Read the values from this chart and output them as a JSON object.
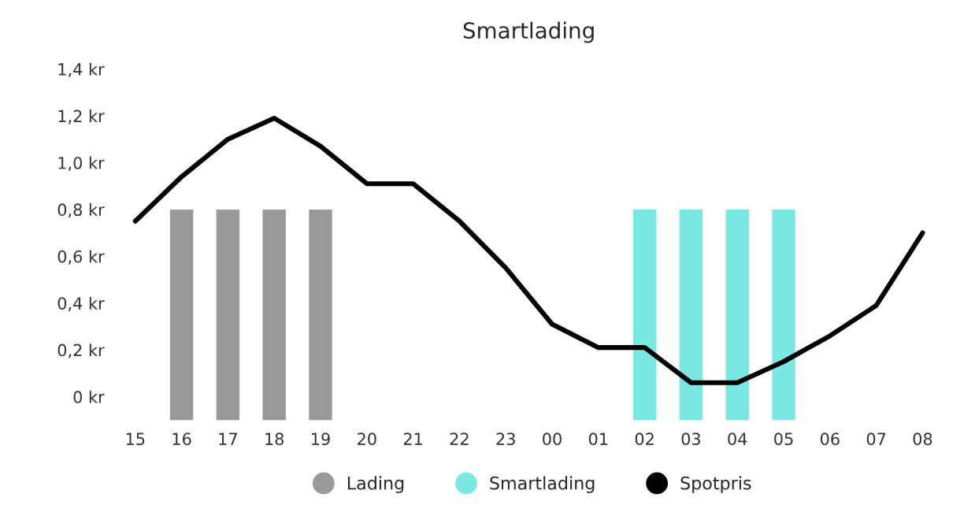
{
  "chart_data": {
    "type": "bar",
    "title": "Smartlading",
    "categories": [
      "15",
      "16",
      "17",
      "18",
      "19",
      "20",
      "21",
      "22",
      "23",
      "00",
      "01",
      "02",
      "03",
      "04",
      "05",
      "06",
      "07",
      "08"
    ],
    "series": [
      {
        "name": "Lading",
        "color": "#999999",
        "values": [
          null,
          0.9,
          0.9,
          0.9,
          0.9,
          null,
          null,
          null,
          null,
          null,
          null,
          null,
          null,
          null,
          null,
          null,
          null,
          null
        ],
        "base": [
          null,
          -0.1,
          -0.1,
          -0.1,
          -0.1,
          null,
          null,
          null,
          null,
          null,
          null,
          null,
          null,
          null,
          null,
          null,
          null,
          null
        ]
      },
      {
        "name": "Smartlading",
        "color": "#7ae8e0",
        "values": [
          null,
          null,
          null,
          null,
          null,
          null,
          null,
          null,
          null,
          null,
          null,
          0.9,
          0.9,
          0.9,
          0.9,
          null,
          null,
          null
        ],
        "base": [
          null,
          null,
          null,
          null,
          null,
          null,
          null,
          null,
          null,
          null,
          null,
          -0.1,
          -0.1,
          -0.1,
          -0.1,
          null,
          null,
          null
        ]
      },
      {
        "name": "Spotpris",
        "color": "#000000",
        "type": "line",
        "values": [
          0.75,
          0.94,
          1.1,
          1.19,
          1.07,
          0.91,
          0.91,
          0.75,
          0.55,
          0.31,
          0.21,
          0.21,
          0.06,
          0.06,
          0.15,
          0.26,
          0.39,
          0.7
        ]
      }
    ],
    "ylim": [
      -0.12,
      1.4
    ],
    "yticks": [
      {
        "value": 0,
        "label": "0 kr"
      },
      {
        "value": 0.2,
        "label": "0,2 kr"
      },
      {
        "value": 0.4,
        "label": "0,4 kr"
      },
      {
        "value": 0.6,
        "label": "0,6 kr"
      },
      {
        "value": 0.8,
        "label": "0,8 kr"
      },
      {
        "value": 1.0,
        "label": "1,0 kr"
      },
      {
        "value": 1.2,
        "label": "1,2 kr"
      },
      {
        "value": 1.4,
        "label": "1,4 kr"
      }
    ],
    "grid": false,
    "legend": "bottom",
    "marker": "none",
    "line_style": "solid"
  }
}
